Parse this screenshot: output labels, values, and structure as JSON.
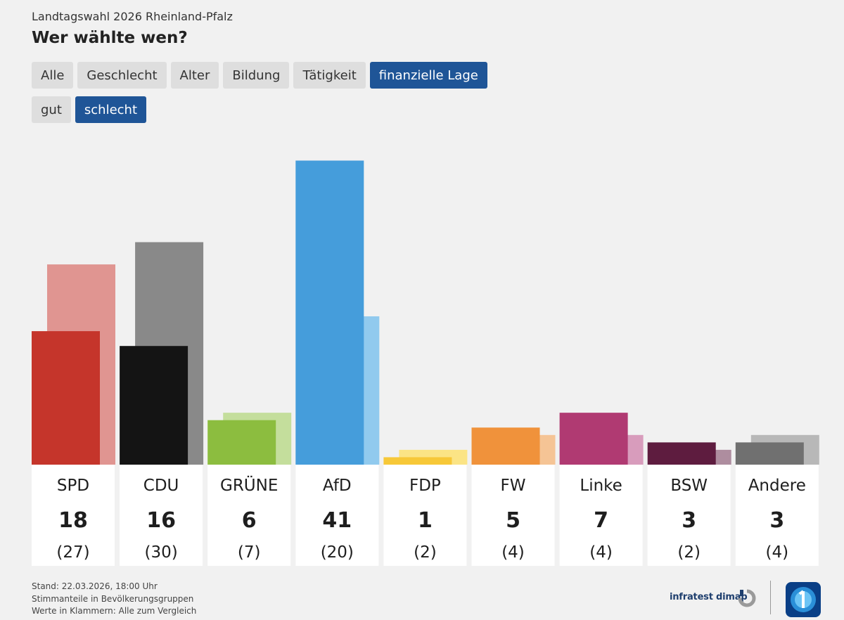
{
  "header": {
    "supertitle": "Landtagswahl 2026 Rheinland-Pfalz",
    "title": "Wer wählte wen?"
  },
  "filters": {
    "row1": [
      {
        "label": "Alle",
        "active": false
      },
      {
        "label": "Geschlecht",
        "active": false
      },
      {
        "label": "Alter",
        "active": false
      },
      {
        "label": "Bildung",
        "active": false
      },
      {
        "label": "Tätigkeit",
        "active": false
      },
      {
        "label": "finanzielle Lage",
        "active": true
      }
    ],
    "row2": [
      {
        "label": "gut",
        "active": false
      },
      {
        "label": "schlecht",
        "active": true
      }
    ]
  },
  "chart_data": {
    "type": "bar",
    "title": "Wer wählte wen?",
    "subtitle": "Landtagswahl 2026 Rheinland-Pfalz",
    "ylim": [
      0,
      45
    ],
    "grid": false,
    "categories": [
      "SPD",
      "CDU",
      "GRÜNE",
      "AfD",
      "FDP",
      "FW",
      "Linke",
      "BSW",
      "Andere"
    ],
    "series": [
      {
        "name": "schlecht",
        "values": [
          18,
          16,
          6,
          41,
          1,
          5,
          7,
          3,
          3
        ]
      },
      {
        "name": "Alle",
        "values": [
          27,
          30,
          7,
          20,
          2,
          4,
          4,
          2,
          4
        ]
      }
    ],
    "colors": {
      "main": [
        "#c5352b",
        "#141414",
        "#8cbd3f",
        "#459ddb",
        "#f7c838",
        "#f0923b",
        "#b03a72",
        "#5e1c3f",
        "#707070"
      ],
      "compare": [
        "#e09591",
        "#898989",
        "#c4de9c",
        "#91caee",
        "#fbe485",
        "#f5c495",
        "#d89cbc",
        "#ae8d9f",
        "#b8b8b8"
      ]
    }
  },
  "footer": {
    "lines": [
      "Stand: 22.03.2026, 18:00 Uhr",
      "Stimmanteile in Bevölkerungsgruppen",
      "Werte in Klammern: Alle zum Vergleich"
    ],
    "source": "infratest dimap"
  }
}
